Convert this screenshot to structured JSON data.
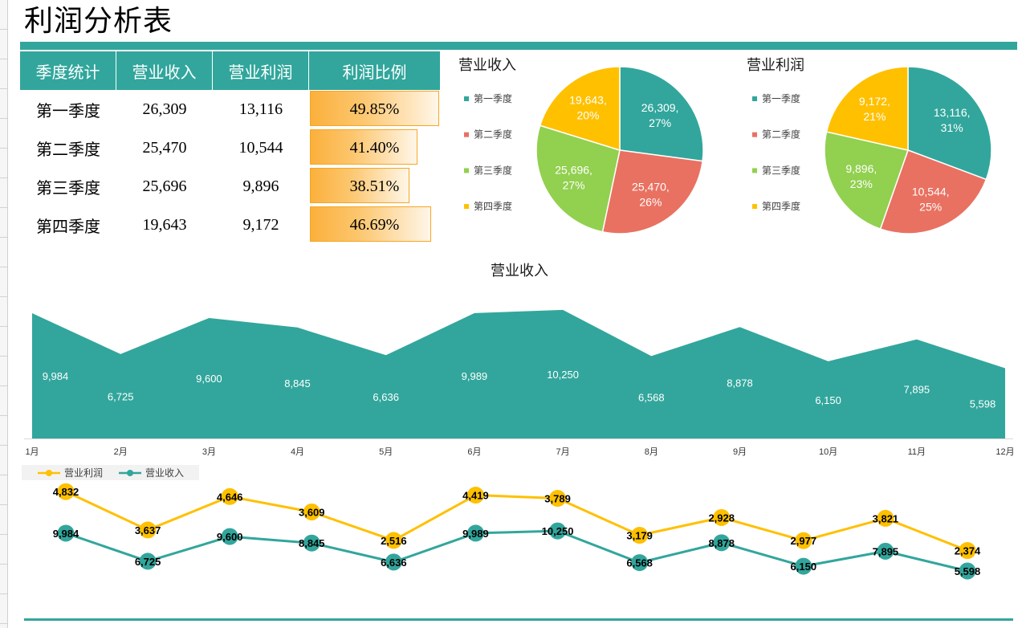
{
  "title": "利润分析表",
  "theme": {
    "accent": "#32a69c",
    "databar": "#fbb03c",
    "databar_border": "#f6a623"
  },
  "table": {
    "headers": [
      "季度统计",
      "营业收入",
      "营业利润",
      "利润比例"
    ],
    "rows": [
      [
        "第一季度",
        "26,309",
        "13,116",
        "49.85%"
      ],
      [
        "第二季度",
        "25,470",
        "10,544",
        "41.40%"
      ],
      [
        "第三季度",
        "25,696",
        "9,896",
        "38.51%"
      ],
      [
        "第四季度",
        "19,643",
        "9,172",
        "46.69%"
      ]
    ]
  },
  "chart_data": [
    {
      "type": "pie",
      "title": "营业收入",
      "categories": [
        "第一季度",
        "第二季度",
        "第三季度",
        "第四季度"
      ],
      "values": [
        26309,
        25470,
        25696,
        19643
      ],
      "percent_labels": [
        "27%",
        "26%",
        "27%",
        "20%"
      ],
      "colors": [
        "#32a69c",
        "#e97161",
        "#92d050",
        "#ffc000"
      ],
      "legend": "left"
    },
    {
      "type": "pie",
      "title": "营业利润",
      "categories": [
        "第一季度",
        "第二季度",
        "第三季度",
        "第四季度"
      ],
      "values": [
        13116,
        10544,
        9896,
        9172
      ],
      "percent_labels": [
        "31%",
        "25%",
        "23%",
        "21%"
      ],
      "colors": [
        "#32a69c",
        "#e97161",
        "#92d050",
        "#ffc000"
      ],
      "legend": "left"
    },
    {
      "type": "area",
      "title": "营业收入",
      "categories": [
        "1月",
        "2月",
        "3月",
        "4月",
        "5月",
        "6月",
        "7月",
        "8月",
        "9月",
        "10月",
        "11月",
        "12月"
      ],
      "values": [
        9984,
        6725,
        9600,
        8845,
        6636,
        9989,
        10250,
        6568,
        8878,
        6150,
        7895,
        5598
      ],
      "ylim": [
        0,
        12000
      ],
      "color": "#32a69c",
      "grid": false
    },
    {
      "type": "line",
      "stacked": true,
      "series": [
        {
          "name": "营业利润",
          "values": [
            4832,
            3637,
            4646,
            3609,
            2516,
            4419,
            3789,
            3179,
            2928,
            2977,
            3821,
            2374
          ],
          "color": "#ffc000"
        },
        {
          "name": "营业收入",
          "values": [
            9984,
            6725,
            9600,
            8845,
            6636,
            9989,
            10250,
            6568,
            8878,
            6150,
            7895,
            5598
          ],
          "color": "#32a69c"
        }
      ],
      "ylim": [
        0,
        16000
      ],
      "grid": false,
      "legend": "top-left"
    }
  ]
}
